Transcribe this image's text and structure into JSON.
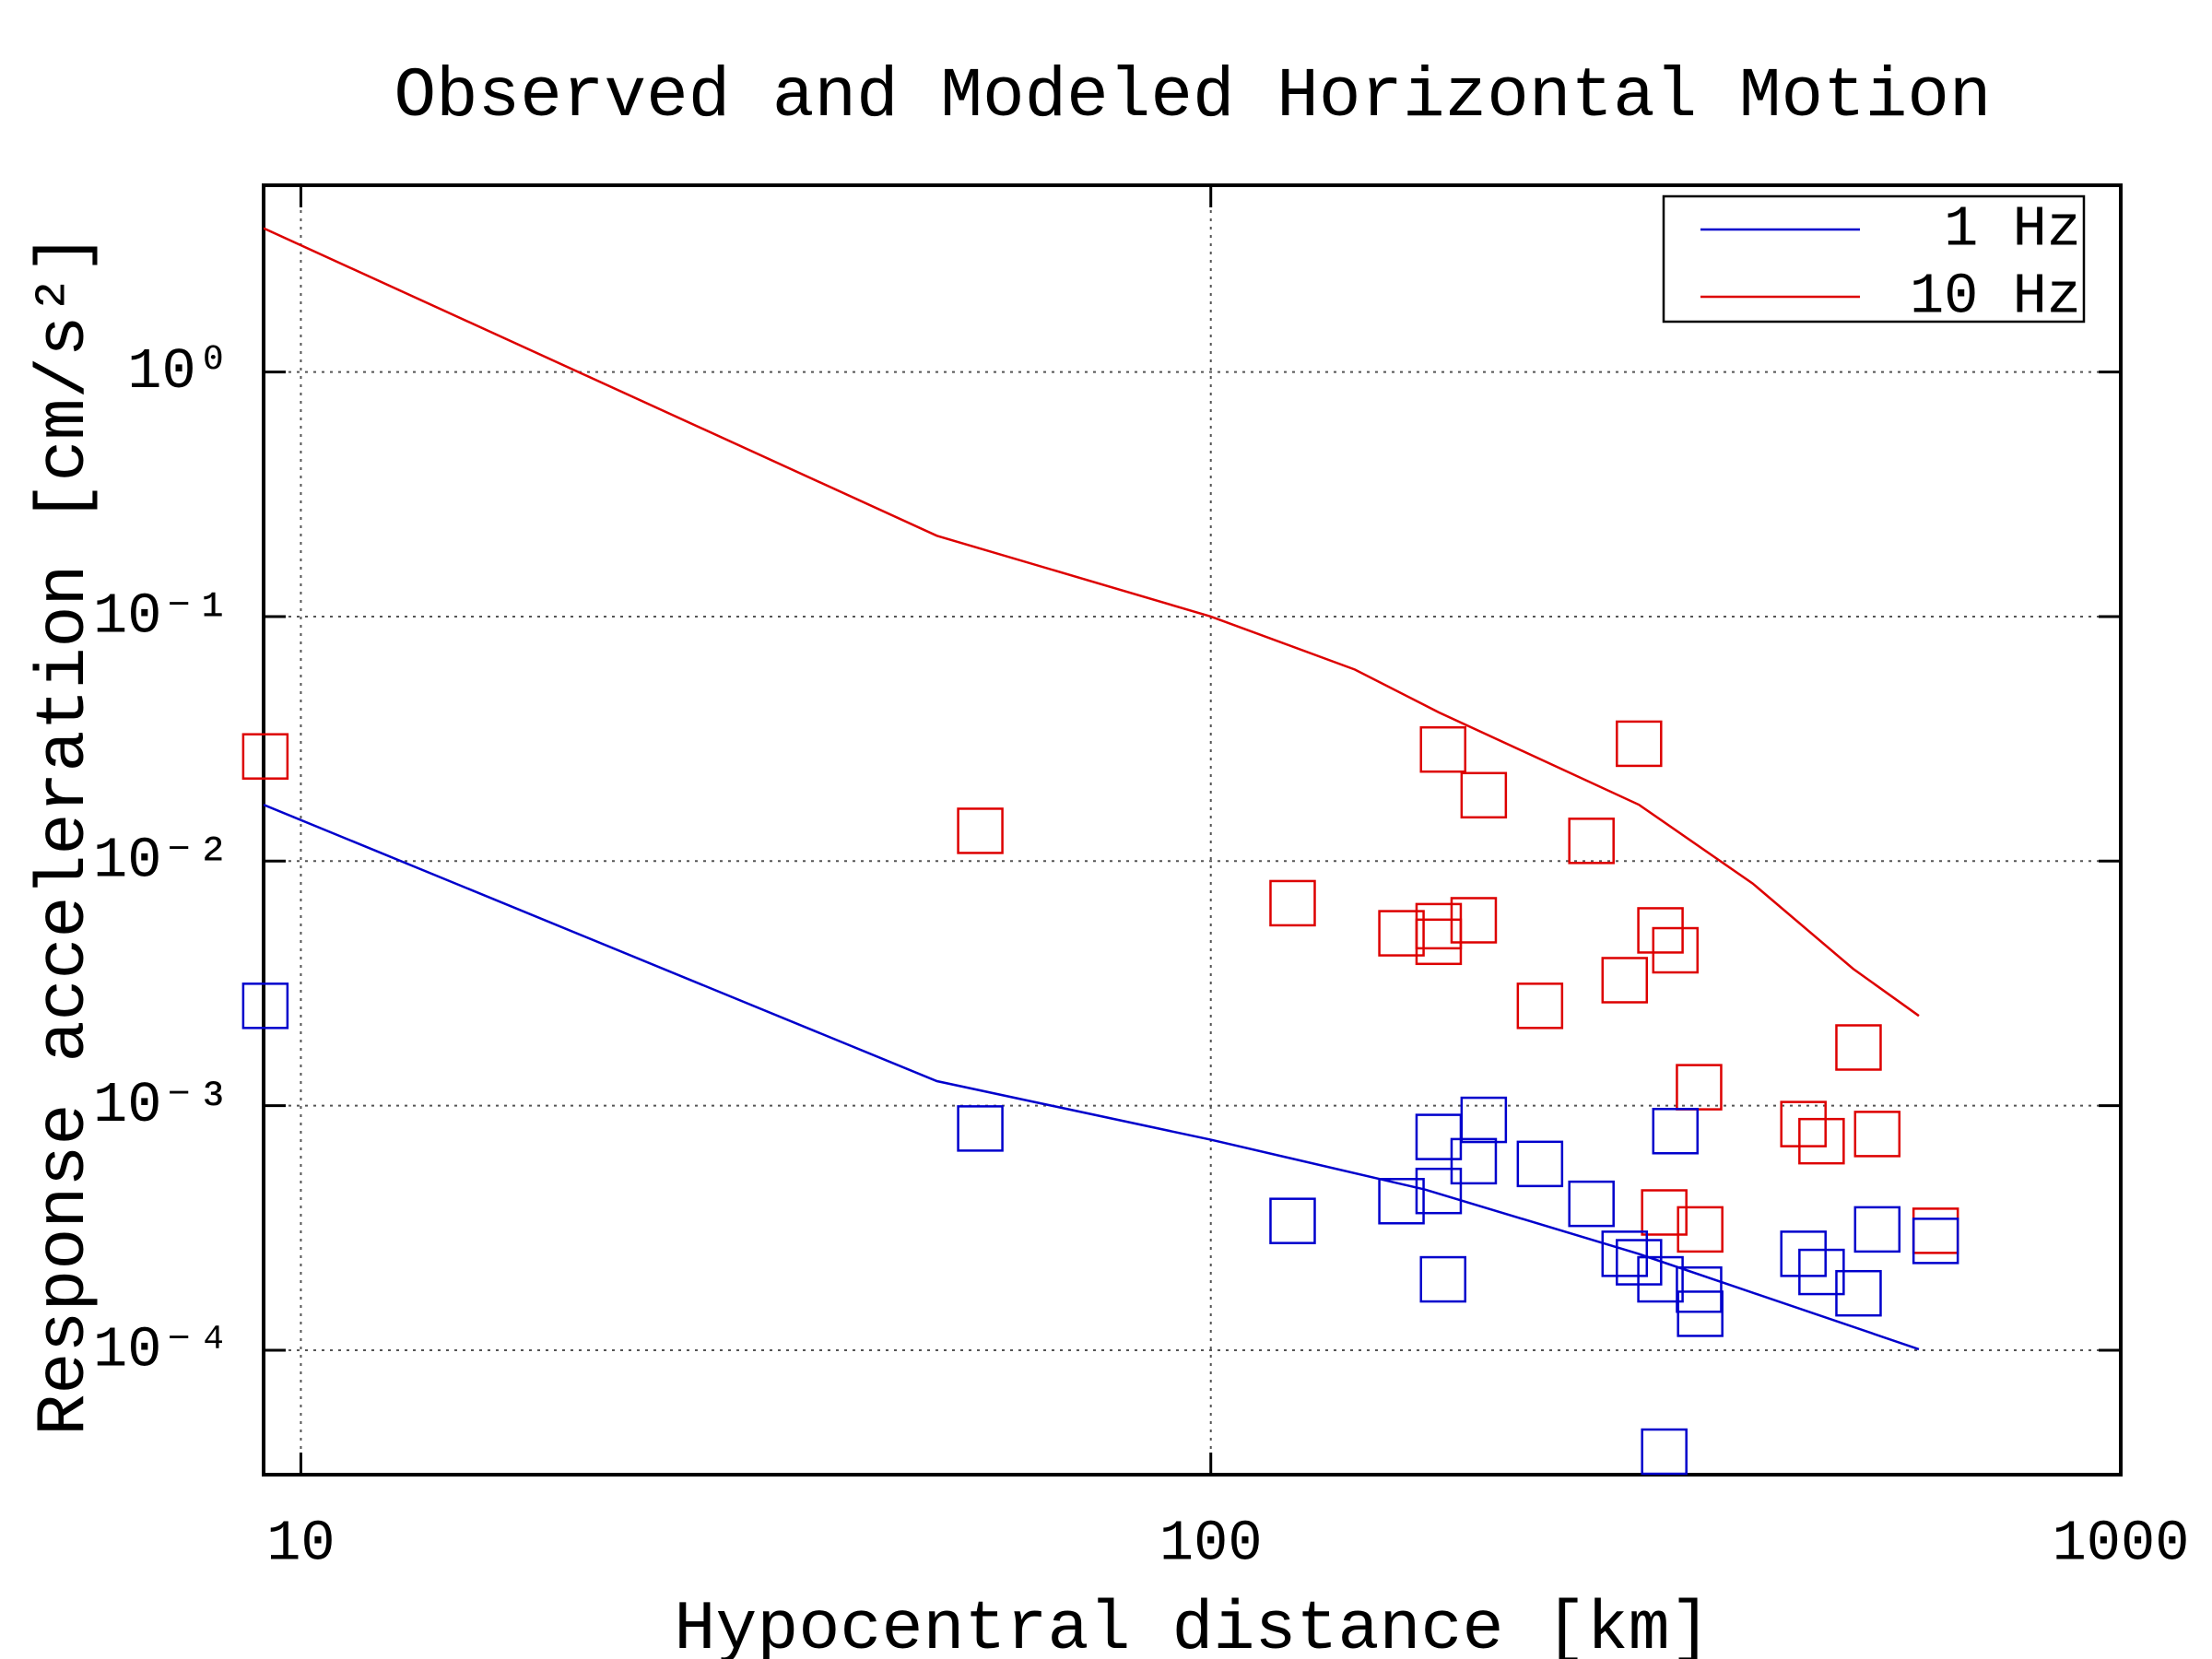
{
  "chart_data": {
    "type": "line",
    "title": "Observed and Modeled Horizontal Motion",
    "x_label": "Hypocentral distance [km]",
    "y_label": "Response acceleration [cm/s²]",
    "log_x": true,
    "log_y": true,
    "grid": true,
    "legend": "upper right",
    "xlim": [
      9.1,
      1000
    ],
    "ylim": [
      3.1e-05,
      5.8
    ],
    "xticks": [
      10,
      100,
      1000
    ],
    "yticks": [
      {
        "value": 0.0001,
        "label": "10⁻⁴"
      },
      {
        "value": 0.001,
        "label": "10⁻³"
      },
      {
        "value": 0.01,
        "label": "10⁻²"
      },
      {
        "value": 0.1,
        "label": "10⁻¹"
      },
      {
        "value": 1,
        "label": "10⁰"
      }
    ],
    "series": [
      {
        "name": "1 Hz",
        "color": "#0000cc",
        "x": [
          9.1,
          50,
          100,
          172,
          295,
          600
        ],
        "values": [
          0.017,
          0.00126,
          0.000726,
          0.000454,
          0.000248,
          0.000101
        ]
      },
      {
        "name": "10 Hz",
        "color": "#dd0000",
        "x": [
          9.1,
          50,
          100,
          144,
          178,
          295.5,
          394,
          508,
          600
        ],
        "values": [
          3.87,
          0.214,
          0.1,
          0.0607,
          0.0406,
          0.017,
          0.0081,
          0.00363,
          0.00233
        ]
      }
    ],
    "points": [
      {
        "color": "#dd0000",
        "marker": "square",
        "x": [
          9.14,
          55.8,
          123,
          162,
          178,
          178,
          180,
          194.5,
          199.5,
          230,
          262,
          285,
          295.5,
          312,
          324,
          344,
          315,
          345,
          448,
          469,
          515,
          540,
          626
        ],
        "values": [
          0.0268,
          0.0133,
          0.00673,
          0.00507,
          0.00542,
          0.00468,
          0.0286,
          0.00573,
          0.0186,
          0.00256,
          0.0121,
          0.00326,
          0.0302,
          0.00521,
          0.00432,
          0.00119,
          0.000366,
          0.000312,
          0.000841,
          0.000716,
          0.00173,
          0.000766,
          0.000308
        ]
      },
      {
        "color": "#0000cc",
        "marker": "square",
        "x": [
          9.14,
          55.8,
          123,
          162,
          178,
          178,
          180,
          194.5,
          199.5,
          230,
          262,
          285,
          295.5,
          312,
          315,
          324,
          344,
          345,
          448,
          469,
          515,
          540,
          626
        ],
        "values": [
          0.00256,
          0.000807,
          0.000338,
          0.000407,
          0.000745,
          0.000448,
          0.000195,
          0.000593,
          0.000875,
          0.000578,
          0.000397,
          0.000248,
          0.000229,
          0.000195,
          3.85e-05,
          0.000787,
          0.000177,
          0.000141,
          0.000248,
          0.000209,
          0.000171,
          0.000312,
          0.00028
        ]
      }
    ]
  }
}
